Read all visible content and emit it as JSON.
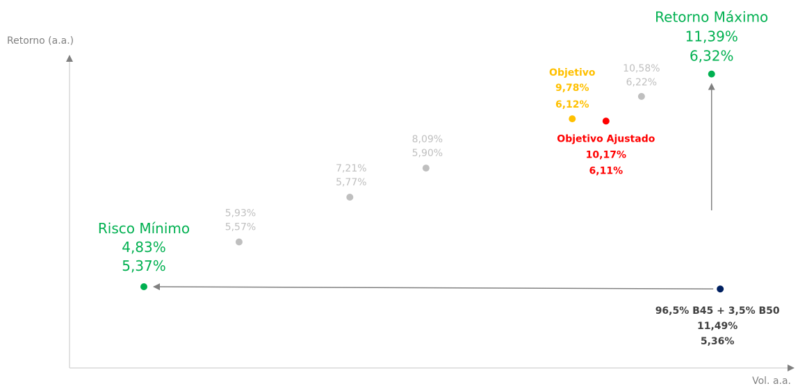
{
  "chart_data": {
    "type": "scatter",
    "xlabel": "Vol. a.a.",
    "ylabel": "Retorno (a.a.)",
    "points": [
      {
        "id": "risco-minimo",
        "name": "Risco Mínimo",
        "label1": "4,83%",
        "label2": "5,37%",
        "x": 4.83,
        "y": 5.37,
        "color": "#00b050"
      },
      {
        "id": "p1",
        "name": "",
        "label1": "5,93%",
        "label2": "5,57%",
        "x": 5.93,
        "y": 5.57,
        "color": "#bfbfbf"
      },
      {
        "id": "p2",
        "name": "",
        "label1": "7,21%",
        "label2": "5,77%",
        "x": 7.21,
        "y": 5.77,
        "color": "#bfbfbf"
      },
      {
        "id": "p3",
        "name": "",
        "label1": "8,09%",
        "label2": "5,90%",
        "x": 8.09,
        "y": 5.9,
        "color": "#bfbfbf"
      },
      {
        "id": "objetivo",
        "name": "Objetivo",
        "label1": "9,78%",
        "label2": "6,12%",
        "x": 9.78,
        "y": 6.12,
        "color": "#ffc000"
      },
      {
        "id": "objetivo-ajustado",
        "name": "Objetivo Ajustado",
        "label1": "10,17%",
        "label2": "6,11%",
        "x": 10.17,
        "y": 6.11,
        "color": "#ff0000"
      },
      {
        "id": "p4",
        "name": "",
        "label1": "10,58%",
        "label2": "6,22%",
        "x": 10.58,
        "y": 6.22,
        "color": "#bfbfbf"
      },
      {
        "id": "retorno-maximo",
        "name": "Retorno Máximo",
        "label1": "11,39%",
        "label2": "6,32%",
        "x": 11.39,
        "y": 6.32,
        "color": "#00b050"
      },
      {
        "id": "carteira-atual",
        "name": "96,5% B45 + 3,5% B50",
        "label1": "11,49%",
        "label2": "5,36%",
        "x": 11.49,
        "y": 5.36,
        "color": "#002060"
      }
    ],
    "arrows": [
      {
        "from": "carteira-atual",
        "to": "risco-minimo"
      },
      {
        "from": "carteira-atual",
        "to": "retorno-maximo"
      }
    ]
  }
}
